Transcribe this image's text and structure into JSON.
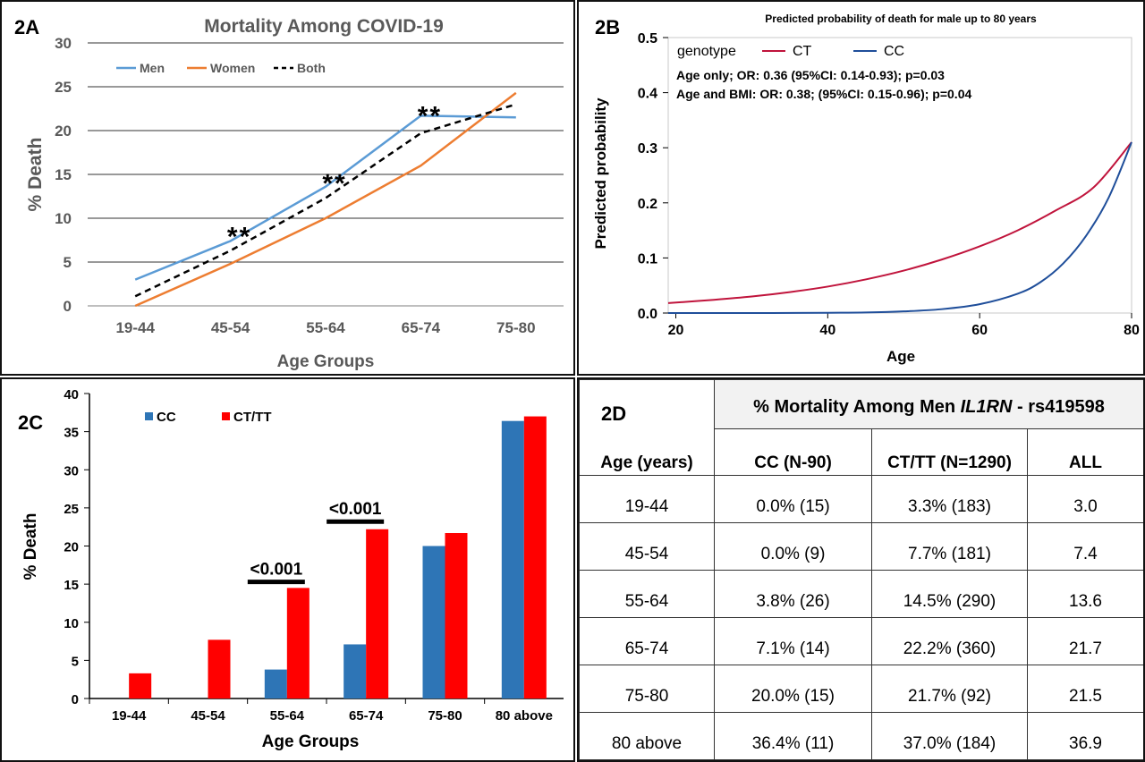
{
  "chart_data": [
    {
      "panel": "2A",
      "type": "line",
      "title": "Mortality Among COVID-19",
      "xlabel": "Age Groups",
      "ylabel": "% Death",
      "categories": [
        "19-44",
        "45-54",
        "55-64",
        "65-74",
        "75-80"
      ],
      "ylim": [
        0,
        30
      ],
      "yticks": [
        0,
        5,
        10,
        15,
        20,
        25,
        30
      ],
      "grid": true,
      "legend": "top-left",
      "series": [
        {
          "name": "Men",
          "values": [
            3.0,
            7.4,
            13.6,
            21.7,
            21.5
          ],
          "color": "#5b9bd5",
          "style": "solid"
        },
        {
          "name": "Women",
          "values": [
            0.0,
            4.8,
            10.0,
            16.0,
            24.3
          ],
          "color": "#ed7d31",
          "style": "solid"
        },
        {
          "name": "Both",
          "values": [
            1.1,
            6.3,
            12.3,
            19.7,
            23.0
          ],
          "color": "#000000",
          "style": "dashed"
        }
      ],
      "annotations": [
        {
          "text": "**",
          "category": "45-54",
          "y": 8.5
        },
        {
          "text": "**",
          "category": "55-64",
          "y": 14.6
        },
        {
          "text": "**",
          "category": "65-74",
          "y": 22.3
        }
      ]
    },
    {
      "panel": "2B",
      "type": "line",
      "title": "Predicted probability of death for male up to 80 years",
      "xlabel": "Age",
      "ylabel": "Predicted probability",
      "xlim": [
        19,
        80
      ],
      "ylim": [
        0,
        0.5
      ],
      "xticks": [
        20,
        40,
        60,
        80
      ],
      "yticks": [
        "0.0",
        "0.1",
        "0.2",
        "0.3",
        "0.4",
        "0.5"
      ],
      "legend": "top-left",
      "legend_title": "genotype",
      "series": [
        {
          "name": "CT",
          "color": "#c0143c",
          "x": [
            19,
            25,
            30,
            35,
            40,
            45,
            50,
            55,
            60,
            65,
            70,
            75,
            80
          ],
          "y": [
            0.018,
            0.024,
            0.03,
            0.038,
            0.048,
            0.061,
            0.077,
            0.097,
            0.121,
            0.15,
            0.186,
            0.228,
            0.31
          ]
        },
        {
          "name": "CC",
          "color": "#1f4e9a",
          "x": [
            19,
            30,
            40,
            45,
            50,
            55,
            60,
            65,
            68,
            71,
            74,
            77,
            80
          ],
          "y": [
            0.0,
            0.0,
            0.0005,
            0.001,
            0.003,
            0.007,
            0.016,
            0.035,
            0.056,
            0.09,
            0.14,
            0.21,
            0.31
          ]
        }
      ],
      "annotations": [
        "Age only; OR: 0.36 (95%CI: 0.14-0.93); p=0.03",
        "Age and BMI: OR: 0.38; (95%CI: 0.15-0.96); p=0.04"
      ]
    },
    {
      "panel": "2C",
      "type": "bar",
      "xlabel": "Age Groups",
      "ylabel": "% Death",
      "categories": [
        "19-44",
        "45-54",
        "55-64",
        "65-74",
        "75-80",
        "80 above"
      ],
      "ylim": [
        0,
        40
      ],
      "yticks": [
        0,
        5,
        10,
        15,
        20,
        25,
        30,
        35,
        40
      ],
      "legend": "top-left",
      "series": [
        {
          "name": "CC",
          "values": [
            0.0,
            0.0,
            3.8,
            7.1,
            20.0,
            36.4
          ],
          "color": "#2e75b6"
        },
        {
          "name": "CT/TT",
          "values": [
            3.3,
            7.7,
            14.5,
            22.2,
            21.7,
            37.0
          ],
          "color": "#ff0000"
        }
      ],
      "annotations": [
        {
          "text": "<0.001",
          "category": "55-64",
          "y": 15.3
        },
        {
          "text": "<0.001",
          "category": "65-74",
          "y": 23.2
        }
      ]
    },
    {
      "panel": "2D",
      "type": "table",
      "title_pre": "% Mortality Among Men ",
      "title_gene": "IL1RN",
      "title_post": " - rs419598",
      "columns": [
        "Age (years)",
        "CC (N-90)",
        "CT/TT (N=1290)",
        "ALL"
      ],
      "rows": [
        [
          "19-44",
          "0.0% (15)",
          "3.3% (183)",
          "3.0"
        ],
        [
          "45-54",
          "0.0% (9)",
          "7.7% (181)",
          "7.4"
        ],
        [
          "55-64",
          "3.8% (26)",
          "14.5% (290)",
          "13.6"
        ],
        [
          "65-74",
          "7.1% (14)",
          "22.2% (360)",
          "21.7"
        ],
        [
          "75-80",
          "20.0% (15)",
          "21.7% (92)",
          "21.5"
        ],
        [
          "80 above",
          "36.4% (11)",
          "37.0% (184)",
          "36.9"
        ]
      ]
    }
  ],
  "panel_labels": {
    "a": "2A",
    "b": "2B",
    "c": "2C",
    "d": "2D"
  }
}
